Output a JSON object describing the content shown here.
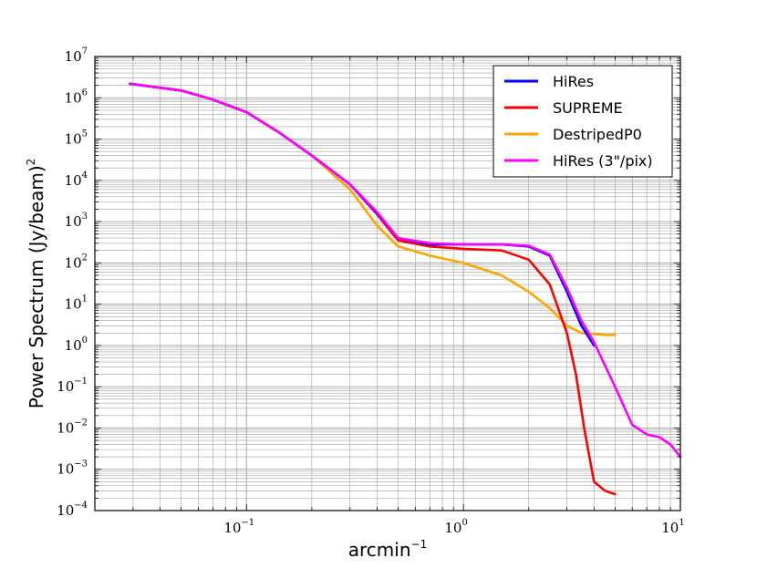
{
  "chart_data": {
    "type": "line",
    "title": "",
    "xlabel": "arcmin",
    "xlabel_exponent": "−1",
    "ylabel": "Power Spectrum (Jy/beam)",
    "ylabel_exponent": "2",
    "xscale": "log",
    "yscale": "log",
    "xlim": [
      0.02,
      10
    ],
    "ylim": [
      0.0001,
      10000000
    ],
    "grid": true,
    "legend_position": "top-right",
    "x_ticks": [
      {
        "base": "10",
        "exp": "−1"
      },
      {
        "base": "10",
        "exp": "0"
      },
      {
        "base": "10",
        "exp": "1"
      }
    ],
    "y_ticks": [
      {
        "base": "10",
        "exp": "−4"
      },
      {
        "base": "10",
        "exp": "−3"
      },
      {
        "base": "10",
        "exp": "−2"
      },
      {
        "base": "10",
        "exp": "−1"
      },
      {
        "base": "10",
        "exp": "0"
      },
      {
        "base": "10",
        "exp": "1"
      },
      {
        "base": "10",
        "exp": "2"
      },
      {
        "base": "10",
        "exp": "3"
      },
      {
        "base": "10",
        "exp": "4"
      },
      {
        "base": "10",
        "exp": "5"
      },
      {
        "base": "10",
        "exp": "6"
      },
      {
        "base": "10",
        "exp": "7"
      }
    ],
    "series": [
      {
        "name": "HiRes",
        "color": "#0000ff",
        "x": [
          0.029,
          0.05,
          0.07,
          0.1,
          0.14,
          0.2,
          0.3,
          0.4,
          0.5,
          0.7,
          1.0,
          1.5,
          2.0,
          2.5,
          3.0,
          3.5,
          4.0
        ],
        "y": [
          2200000,
          1500000,
          900000,
          450000,
          150000,
          40000,
          8000,
          1600,
          400,
          280,
          280,
          280,
          250,
          150,
          20,
          3,
          1
        ]
      },
      {
        "name": "SUPREME",
        "color": "#ff0000",
        "x": [
          0.029,
          0.05,
          0.07,
          0.1,
          0.14,
          0.2,
          0.3,
          0.4,
          0.5,
          0.7,
          1.0,
          1.5,
          2.0,
          2.5,
          3.0,
          3.3,
          3.6,
          4.0,
          4.5,
          5.0
        ],
        "y": [
          2200000,
          1500000,
          900000,
          450000,
          150000,
          40000,
          8000,
          1500,
          350,
          250,
          220,
          200,
          120,
          30,
          2,
          0.2,
          0.01,
          0.0005,
          0.0003,
          0.00025
        ]
      },
      {
        "name": "DestripedP0",
        "color": "#ffa500",
        "x": [
          0.029,
          0.05,
          0.07,
          0.1,
          0.14,
          0.2,
          0.3,
          0.4,
          0.5,
          0.7,
          1.0,
          1.5,
          2.0,
          2.5,
          3.0,
          3.5,
          4.0,
          4.5,
          5.0
        ],
        "y": [
          2200000,
          1500000,
          900000,
          450000,
          150000,
          40000,
          6000,
          800,
          250,
          150,
          100,
          50,
          20,
          8,
          3,
          2,
          1.9,
          1.8,
          1.8
        ]
      },
      {
        "name": "HiRes (3\"/pix)",
        "color": "#ff00ff",
        "x": [
          0.029,
          0.05,
          0.07,
          0.1,
          0.14,
          0.2,
          0.3,
          0.4,
          0.5,
          0.7,
          1.0,
          1.5,
          2.0,
          2.5,
          3.0,
          3.5,
          4.0,
          5.0,
          6.0,
          7.0,
          8.0,
          9.0,
          10.0
        ],
        "y": [
          2200000,
          1500000,
          900000,
          450000,
          150000,
          40000,
          8000,
          1700,
          400,
          300,
          280,
          280,
          260,
          160,
          25,
          4,
          1.2,
          0.1,
          0.012,
          0.007,
          0.006,
          0.004,
          0.002
        ]
      }
    ]
  }
}
